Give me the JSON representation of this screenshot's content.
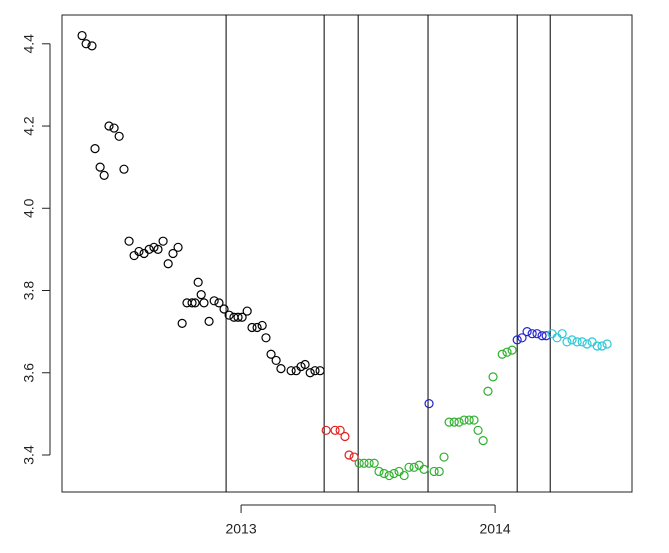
{
  "chart_data": {
    "type": "scatter",
    "xlim": [
      2012.295,
      2014.539
    ],
    "ylim": [
      3.31,
      4.47
    ],
    "xticks": [
      2013,
      2014
    ],
    "yticks": [
      3.4,
      3.6,
      3.8,
      {
        "value": 4,
        "label": "4.0"
      },
      4.2,
      4.4
    ],
    "vlines": [
      2012.941,
      2013.327,
      2013.461,
      2013.736,
      2014.087,
      2014.217
    ],
    "series": [
      {
        "color": "#000000",
        "x": [
          2012.374,
          2012.39,
          2012.413,
          2012.425,
          2012.445,
          2012.461,
          2012.48,
          2012.5,
          2012.52,
          2012.539,
          2012.559,
          2012.579,
          2012.598,
          2012.618,
          2012.638,
          2012.657,
          2012.673,
          2012.693,
          2012.713,
          2012.732,
          2012.752,
          2012.768,
          2012.787,
          2012.807,
          2012.819,
          2012.831,
          2012.843,
          2012.854,
          2012.874,
          2012.894,
          2012.913,
          2012.933,
          2012.953,
          2012.972,
          2012.988,
          2013.004,
          2013.024,
          2013.043,
          2013.063,
          2013.083,
          2013.098,
          2013.118,
          2013.138,
          2013.157,
          2013.197,
          2013.217,
          2013.236,
          2013.252,
          2013.272,
          2013.291,
          2013.311
        ],
        "values": [
          4.42,
          4.4,
          4.395,
          4.145,
          4.1,
          4.08,
          4.2,
          4.195,
          4.175,
          4.095,
          3.92,
          3.885,
          3.895,
          3.89,
          3.9,
          3.905,
          3.9,
          3.92,
          3.865,
          3.89,
          3.905,
          3.72,
          3.77,
          3.77,
          3.77,
          3.82,
          3.79,
          3.77,
          3.725,
          3.775,
          3.77,
          3.755,
          3.74,
          3.735,
          3.735,
          3.735,
          3.75,
          3.71,
          3.71,
          3.715,
          3.685,
          3.645,
          3.63,
          3.61,
          3.605,
          3.605,
          3.615,
          3.62,
          3.6,
          3.605,
          3.605
        ]
      },
      {
        "color": "#e0201c",
        "x": [
          2013.335,
          2013.37,
          2013.39,
          2013.409,
          2013.425,
          2013.445
        ],
        "values": [
          3.46,
          3.46,
          3.46,
          3.445,
          3.4,
          3.395
        ]
      },
      {
        "color": "#2fb02f",
        "x": [
          2013.465,
          2013.484,
          2013.504,
          2013.524,
          2013.543,
          2013.563,
          2013.583,
          2013.602,
          2013.622,
          2013.642,
          2013.661,
          2013.681,
          2013.701,
          2013.72,
          2013.76,
          2013.78,
          2013.799,
          2013.819,
          2013.839,
          2013.858,
          2013.878,
          2013.898,
          2013.917,
          2013.933,
          2013.953,
          2013.972,
          2013.992,
          2014.028,
          2014.047,
          2014.067
        ],
        "values": [
          3.38,
          3.38,
          3.38,
          3.38,
          3.36,
          3.355,
          3.35,
          3.355,
          3.36,
          3.35,
          3.37,
          3.37,
          3.375,
          3.365,
          3.36,
          3.36,
          3.395,
          3.48,
          3.48,
          3.48,
          3.485,
          3.485,
          3.485,
          3.46,
          3.435,
          3.555,
          3.59,
          3.645,
          3.65,
          3.655
        ]
      },
      {
        "color": "#2424d0",
        "x": [
          2013.74,
          2014.087,
          2014.106,
          2014.126,
          2014.146,
          2014.165,
          2014.185,
          2014.201
        ],
        "values": [
          3.525,
          3.68,
          3.685,
          3.7,
          3.695,
          3.695,
          3.69,
          3.69
        ]
      },
      {
        "color": "#2ac8d8",
        "x": [
          2014.224,
          2014.244,
          2014.264,
          2014.283,
          2014.303,
          2014.323,
          2014.343,
          2014.362,
          2014.382,
          2014.402,
          2014.421,
          2014.441
        ],
        "values": [
          3.695,
          3.685,
          3.695,
          3.675,
          3.68,
          3.675,
          3.675,
          3.67,
          3.675,
          3.665,
          3.665,
          3.67
        ]
      }
    ]
  }
}
